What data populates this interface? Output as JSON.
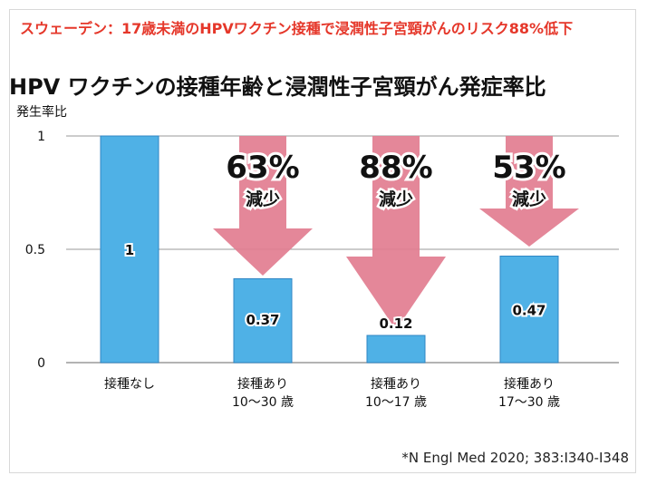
{
  "headline": "スウェーデン：17歳未満のHPVワクチン接種で浸潤性子宮頸がんのリスク88%低下",
  "source": "*N Engl Med 2020; 383:I340-I348",
  "chart_data": {
    "type": "bar",
    "title": "HPV ワクチンの接種年齢と浸潤性子宮頸がん発症率比",
    "ylabel": "発生率比",
    "xlabel": "",
    "ylim": [
      0,
      1
    ],
    "yticks": [
      0,
      0.5,
      1
    ],
    "ytick_labels": [
      "0",
      "0.5",
      "1"
    ],
    "categories": [
      [
        "接種なし"
      ],
      [
        "接種あり",
        "10〜30 歳"
      ],
      [
        "接種あり",
        "10〜17 歳"
      ],
      [
        "接種あり",
        "17〜30 歳"
      ]
    ],
    "values": [
      1,
      0.37,
      0.12,
      0.47
    ],
    "value_labels": [
      "1",
      "0.37",
      "0.12",
      "0.47"
    ],
    "annotations": [
      null,
      {
        "percent": "63%",
        "label": "減少"
      },
      {
        "percent": "88%",
        "label": "減少"
      },
      {
        "percent": "53%",
        "label": "減少"
      }
    ],
    "grid": true,
    "colors": {
      "bar": "#4fb1e6",
      "bar_border": "#2f86c4",
      "arrow": "#e27d90",
      "grid": "#9a9a9a",
      "headline": "#e5372a"
    }
  }
}
